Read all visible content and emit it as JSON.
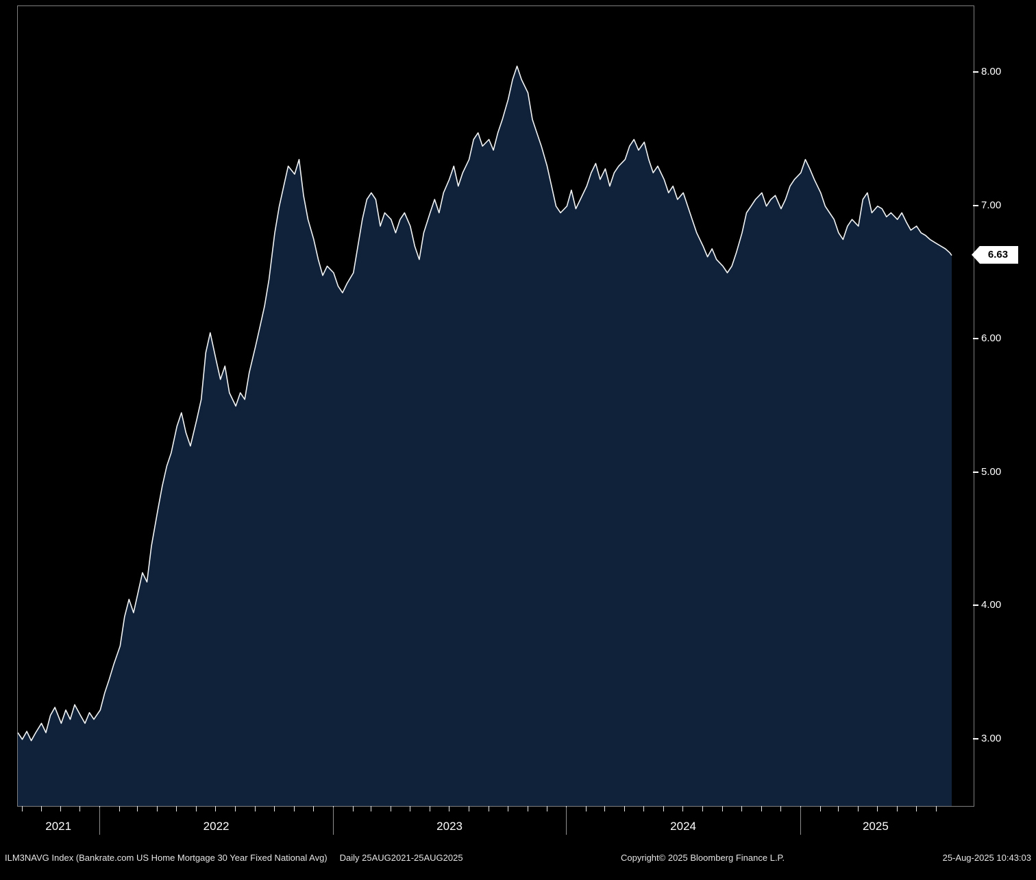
{
  "colors": {
    "background": "#000000",
    "area_fill": "#0f2239",
    "line": "#f2f4f5",
    "axis_text": "#ffffff",
    "frame": "#7f7f7f",
    "badge_bg": "#ffffff",
    "badge_text": "#000000"
  },
  "footer": {
    "instrument": "ILM3NAVG Index (Bankrate.com US Home Mortgage 30 Year Fixed National Avg)",
    "period": "Daily 25AUG2021-25AUG2025",
    "copyright": "Copyright© 2025 Bloomberg Finance L.P.",
    "timestamp": "25-Aug-2025 10:43:03"
  },
  "chart_data": {
    "type": "area",
    "title": "",
    "xlabel": "",
    "ylabel": "",
    "series_name": "ILM3NAVG Index - Bankrate.com US Home Mortgage 30 Year Fixed National Avg",
    "frequency": "Daily",
    "x_range": [
      "2021-08-25",
      "2025-08-25"
    ],
    "ylim": [
      2.5,
      8.5
    ],
    "yticks": [
      3.0,
      4.0,
      5.0,
      6.0,
      7.0,
      8.0
    ],
    "ytick_labels": [
      "3.00",
      "4.00",
      "5.00",
      "6.00",
      "7.00",
      "8.00"
    ],
    "year_labels": [
      "2021",
      "2022",
      "2023",
      "2024",
      "2025"
    ],
    "last_value": 6.63,
    "last_value_label": "6.63",
    "grid": false,
    "legend": "none",
    "points": [
      [
        "2021-08-25",
        3.05
      ],
      [
        "2021-09-01",
        3.0
      ],
      [
        "2021-09-08",
        3.06
      ],
      [
        "2021-09-15",
        2.99
      ],
      [
        "2021-09-22",
        3.05
      ],
      [
        "2021-10-01",
        3.12
      ],
      [
        "2021-10-08",
        3.05
      ],
      [
        "2021-10-15",
        3.18
      ],
      [
        "2021-10-22",
        3.24
      ],
      [
        "2021-11-01",
        3.12
      ],
      [
        "2021-11-08",
        3.22
      ],
      [
        "2021-11-15",
        3.15
      ],
      [
        "2021-11-22",
        3.26
      ],
      [
        "2021-12-01",
        3.18
      ],
      [
        "2021-12-08",
        3.12
      ],
      [
        "2021-12-15",
        3.2
      ],
      [
        "2021-12-22",
        3.15
      ],
      [
        "2022-01-01",
        3.22
      ],
      [
        "2022-01-08",
        3.35
      ],
      [
        "2022-01-15",
        3.45
      ],
      [
        "2022-01-22",
        3.56
      ],
      [
        "2022-02-01",
        3.7
      ],
      [
        "2022-02-08",
        3.92
      ],
      [
        "2022-02-15",
        4.05
      ],
      [
        "2022-02-22",
        3.95
      ],
      [
        "2022-03-01",
        4.1
      ],
      [
        "2022-03-08",
        4.25
      ],
      [
        "2022-03-15",
        4.18
      ],
      [
        "2022-03-22",
        4.45
      ],
      [
        "2022-04-01",
        4.72
      ],
      [
        "2022-04-08",
        4.9
      ],
      [
        "2022-04-15",
        5.05
      ],
      [
        "2022-04-22",
        5.15
      ],
      [
        "2022-05-01",
        5.35
      ],
      [
        "2022-05-08",
        5.45
      ],
      [
        "2022-05-15",
        5.3
      ],
      [
        "2022-05-22",
        5.2
      ],
      [
        "2022-06-01",
        5.4
      ],
      [
        "2022-06-08",
        5.55
      ],
      [
        "2022-06-15",
        5.9
      ],
      [
        "2022-06-22",
        6.05
      ],
      [
        "2022-07-01",
        5.85
      ],
      [
        "2022-07-08",
        5.7
      ],
      [
        "2022-07-15",
        5.8
      ],
      [
        "2022-07-22",
        5.6
      ],
      [
        "2022-08-01",
        5.5
      ],
      [
        "2022-08-08",
        5.6
      ],
      [
        "2022-08-15",
        5.55
      ],
      [
        "2022-08-22",
        5.75
      ],
      [
        "2022-09-01",
        5.95
      ],
      [
        "2022-09-08",
        6.1
      ],
      [
        "2022-09-15",
        6.25
      ],
      [
        "2022-09-22",
        6.45
      ],
      [
        "2022-10-01",
        6.8
      ],
      [
        "2022-10-08",
        7.0
      ],
      [
        "2022-10-15",
        7.15
      ],
      [
        "2022-10-22",
        7.3
      ],
      [
        "2022-11-01",
        7.24
      ],
      [
        "2022-11-08",
        7.35
      ],
      [
        "2022-11-15",
        7.08
      ],
      [
        "2022-11-22",
        6.9
      ],
      [
        "2022-12-01",
        6.75
      ],
      [
        "2022-12-08",
        6.6
      ],
      [
        "2022-12-15",
        6.48
      ],
      [
        "2022-12-22",
        6.55
      ],
      [
        "2023-01-01",
        6.5
      ],
      [
        "2023-01-08",
        6.4
      ],
      [
        "2023-01-15",
        6.35
      ],
      [
        "2023-01-22",
        6.42
      ],
      [
        "2023-02-01",
        6.5
      ],
      [
        "2023-02-08",
        6.7
      ],
      [
        "2023-02-15",
        6.9
      ],
      [
        "2023-02-22",
        7.05
      ],
      [
        "2023-03-01",
        7.1
      ],
      [
        "2023-03-08",
        7.05
      ],
      [
        "2023-03-15",
        6.85
      ],
      [
        "2023-03-22",
        6.95
      ],
      [
        "2023-04-01",
        6.9
      ],
      [
        "2023-04-08",
        6.8
      ],
      [
        "2023-04-15",
        6.9
      ],
      [
        "2023-04-22",
        6.95
      ],
      [
        "2023-05-01",
        6.85
      ],
      [
        "2023-05-08",
        6.7
      ],
      [
        "2023-05-15",
        6.6
      ],
      [
        "2023-05-22",
        6.8
      ],
      [
        "2023-06-01",
        6.95
      ],
      [
        "2023-06-08",
        7.05
      ],
      [
        "2023-06-15",
        6.95
      ],
      [
        "2023-06-22",
        7.1
      ],
      [
        "2023-07-01",
        7.2
      ],
      [
        "2023-07-08",
        7.3
      ],
      [
        "2023-07-15",
        7.15
      ],
      [
        "2023-07-22",
        7.25
      ],
      [
        "2023-08-01",
        7.35
      ],
      [
        "2023-08-08",
        7.5
      ],
      [
        "2023-08-15",
        7.55
      ],
      [
        "2023-08-22",
        7.45
      ],
      [
        "2023-09-01",
        7.5
      ],
      [
        "2023-09-08",
        7.42
      ],
      [
        "2023-09-15",
        7.55
      ],
      [
        "2023-09-22",
        7.65
      ],
      [
        "2023-10-01",
        7.8
      ],
      [
        "2023-10-08",
        7.95
      ],
      [
        "2023-10-15",
        8.05
      ],
      [
        "2023-10-22",
        7.95
      ],
      [
        "2023-11-01",
        7.85
      ],
      [
        "2023-11-08",
        7.65
      ],
      [
        "2023-11-15",
        7.55
      ],
      [
        "2023-11-22",
        7.45
      ],
      [
        "2023-12-01",
        7.3
      ],
      [
        "2023-12-08",
        7.15
      ],
      [
        "2023-12-15",
        7.0
      ],
      [
        "2023-12-22",
        6.95
      ],
      [
        "2024-01-01",
        7.0
      ],
      [
        "2024-01-08",
        7.12
      ],
      [
        "2024-01-15",
        6.98
      ],
      [
        "2024-01-22",
        7.05
      ],
      [
        "2024-02-01",
        7.15
      ],
      [
        "2024-02-08",
        7.25
      ],
      [
        "2024-02-15",
        7.32
      ],
      [
        "2024-02-22",
        7.2
      ],
      [
        "2024-03-01",
        7.28
      ],
      [
        "2024-03-08",
        7.15
      ],
      [
        "2024-03-15",
        7.25
      ],
      [
        "2024-03-22",
        7.3
      ],
      [
        "2024-04-01",
        7.35
      ],
      [
        "2024-04-08",
        7.45
      ],
      [
        "2024-04-15",
        7.5
      ],
      [
        "2024-04-22",
        7.42
      ],
      [
        "2024-05-01",
        7.48
      ],
      [
        "2024-05-08",
        7.35
      ],
      [
        "2024-05-15",
        7.25
      ],
      [
        "2024-05-22",
        7.3
      ],
      [
        "2024-06-01",
        7.2
      ],
      [
        "2024-06-08",
        7.1
      ],
      [
        "2024-06-15",
        7.15
      ],
      [
        "2024-06-22",
        7.05
      ],
      [
        "2024-07-01",
        7.1
      ],
      [
        "2024-07-08",
        7.0
      ],
      [
        "2024-07-15",
        6.9
      ],
      [
        "2024-07-22",
        6.8
      ],
      [
        "2024-08-01",
        6.7
      ],
      [
        "2024-08-08",
        6.62
      ],
      [
        "2024-08-15",
        6.68
      ],
      [
        "2024-08-22",
        6.6
      ],
      [
        "2024-09-01",
        6.55
      ],
      [
        "2024-09-08",
        6.5
      ],
      [
        "2024-09-15",
        6.55
      ],
      [
        "2024-09-22",
        6.65
      ],
      [
        "2024-10-01",
        6.8
      ],
      [
        "2024-10-08",
        6.95
      ],
      [
        "2024-10-15",
        7.0
      ],
      [
        "2024-10-22",
        7.05
      ],
      [
        "2024-11-01",
        7.1
      ],
      [
        "2024-11-08",
        7.0
      ],
      [
        "2024-11-15",
        7.05
      ],
      [
        "2024-11-22",
        7.08
      ],
      [
        "2024-12-01",
        6.98
      ],
      [
        "2024-12-08",
        7.05
      ],
      [
        "2024-12-15",
        7.15
      ],
      [
        "2024-12-22",
        7.2
      ],
      [
        "2025-01-01",
        7.25
      ],
      [
        "2025-01-08",
        7.35
      ],
      [
        "2025-01-15",
        7.28
      ],
      [
        "2025-01-22",
        7.2
      ],
      [
        "2025-02-01",
        7.1
      ],
      [
        "2025-02-08",
        7.0
      ],
      [
        "2025-02-15",
        6.95
      ],
      [
        "2025-02-22",
        6.9
      ],
      [
        "2025-03-01",
        6.8
      ],
      [
        "2025-03-08",
        6.75
      ],
      [
        "2025-03-15",
        6.85
      ],
      [
        "2025-03-22",
        6.9
      ],
      [
        "2025-04-01",
        6.85
      ],
      [
        "2025-04-08",
        7.05
      ],
      [
        "2025-04-15",
        7.1
      ],
      [
        "2025-04-22",
        6.95
      ],
      [
        "2025-05-01",
        7.0
      ],
      [
        "2025-05-08",
        6.98
      ],
      [
        "2025-05-15",
        6.92
      ],
      [
        "2025-05-22",
        6.95
      ],
      [
        "2025-06-01",
        6.9
      ],
      [
        "2025-06-08",
        6.95
      ],
      [
        "2025-06-15",
        6.88
      ],
      [
        "2025-06-22",
        6.82
      ],
      [
        "2025-07-01",
        6.85
      ],
      [
        "2025-07-08",
        6.8
      ],
      [
        "2025-07-15",
        6.78
      ],
      [
        "2025-07-22",
        6.75
      ],
      [
        "2025-08-01",
        6.72
      ],
      [
        "2025-08-08",
        6.7
      ],
      [
        "2025-08-15",
        6.68
      ],
      [
        "2025-08-22",
        6.65
      ],
      [
        "2025-08-25",
        6.63
      ]
    ]
  }
}
